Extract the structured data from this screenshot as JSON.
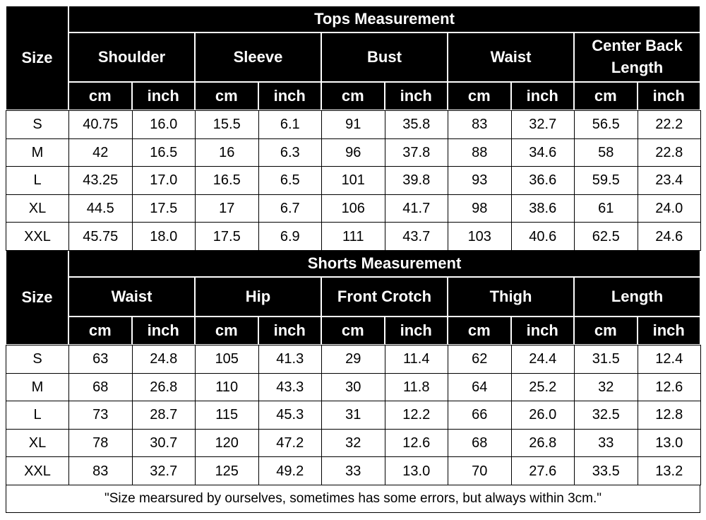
{
  "tables": [
    {
      "title": "Tops Measurement",
      "size_label": "Size",
      "groups": [
        "Shoulder",
        "Sleeve",
        "Bust",
        "Waist",
        "Center Back Length"
      ],
      "units": [
        "cm",
        "inch",
        "cm",
        "inch",
        "cm",
        "inch",
        "cm",
        "inch",
        "cm",
        "inch"
      ],
      "rows": [
        [
          "S",
          "40.75",
          "16.0",
          "15.5",
          "6.1",
          "91",
          "35.8",
          "83",
          "32.7",
          "56.5",
          "22.2"
        ],
        [
          "M",
          "42",
          "16.5",
          "16",
          "6.3",
          "96",
          "37.8",
          "88",
          "34.6",
          "58",
          "22.8"
        ],
        [
          "L",
          "43.25",
          "17.0",
          "16.5",
          "6.5",
          "101",
          "39.8",
          "93",
          "36.6",
          "59.5",
          "23.4"
        ],
        [
          "XL",
          "44.5",
          "17.5",
          "17",
          "6.7",
          "106",
          "41.7",
          "98",
          "38.6",
          "61",
          "24.0"
        ],
        [
          "XXL",
          "45.75",
          "18.0",
          "17.5",
          "6.9",
          "111",
          "43.7",
          "103",
          "40.6",
          "62.5",
          "24.6"
        ]
      ]
    },
    {
      "title": "Shorts Measurement",
      "size_label": "Size",
      "groups": [
        "Waist",
        "Hip",
        "Front Crotch",
        "Thigh",
        "Length"
      ],
      "units": [
        "cm",
        "inch",
        "cm",
        "inch",
        "cm",
        "inch",
        "cm",
        "inch",
        "cm",
        "inch"
      ],
      "rows": [
        [
          "S",
          "63",
          "24.8",
          "105",
          "41.3",
          "29",
          "11.4",
          "62",
          "24.4",
          "31.5",
          "12.4"
        ],
        [
          "M",
          "68",
          "26.8",
          "110",
          "43.3",
          "30",
          "11.8",
          "64",
          "25.2",
          "32",
          "12.6"
        ],
        [
          "L",
          "73",
          "28.7",
          "115",
          "45.3",
          "31",
          "12.2",
          "66",
          "26.0",
          "32.5",
          "12.8"
        ],
        [
          "XL",
          "78",
          "30.7",
          "120",
          "47.2",
          "32",
          "12.6",
          "68",
          "26.8",
          "33",
          "13.0"
        ],
        [
          "XXL",
          "83",
          "32.7",
          "125",
          "49.2",
          "33",
          "13.0",
          "70",
          "27.6",
          "33.5",
          "13.2"
        ]
      ]
    }
  ],
  "note": "\"Size mearsured by ourselves, sometimes has some errors, but always within 3cm.\""
}
